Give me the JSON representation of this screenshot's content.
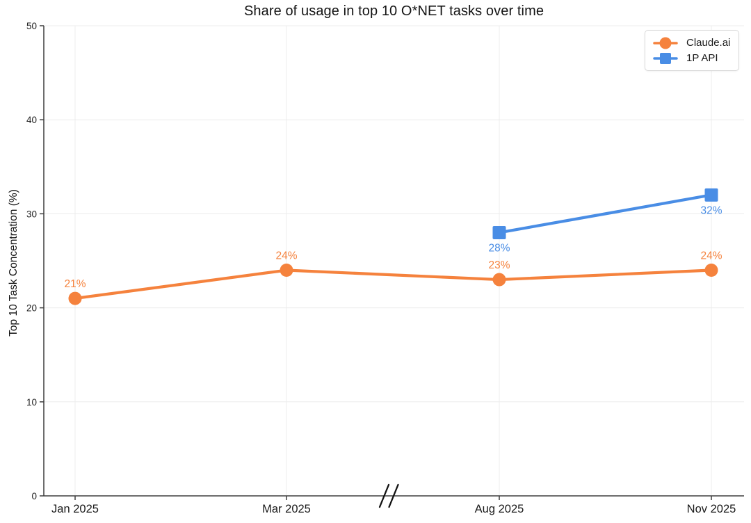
{
  "chart_data": {
    "type": "line",
    "title": "Share of usage in top 10 O*NET tasks over time",
    "xlabel": "",
    "ylabel": "Top 10 Task Concentration (%)",
    "categories": [
      "Jan 2025",
      "Mar 2025",
      "Aug 2025",
      "Nov 2025"
    ],
    "series": [
      {
        "name": "Claude.ai",
        "color": "#F5823D",
        "marker": "circle",
        "values": [
          21,
          24,
          23,
          24
        ],
        "data_labels": [
          "21%",
          "24%",
          "23%",
          "24%"
        ],
        "label_side": "above"
      },
      {
        "name": "1P API",
        "color": "#498DE5",
        "marker": "square",
        "values": [
          null,
          null,
          28,
          32
        ],
        "data_labels": [
          null,
          null,
          "28%",
          "32%"
        ],
        "label_side": "below"
      }
    ],
    "ylim": [
      0,
      50
    ],
    "yticks": [
      0,
      10,
      20,
      30,
      40,
      50
    ],
    "grid": true,
    "legend_position": "top-right",
    "axis_break": {
      "between": [
        "Mar 2025",
        "Aug 2025"
      ]
    }
  },
  "style_colors": {
    "grid": "#ececec",
    "spine": "#3d3d3d",
    "tick_label": "#1f1f1f",
    "x_tick_label": "#1a1a1a"
  }
}
